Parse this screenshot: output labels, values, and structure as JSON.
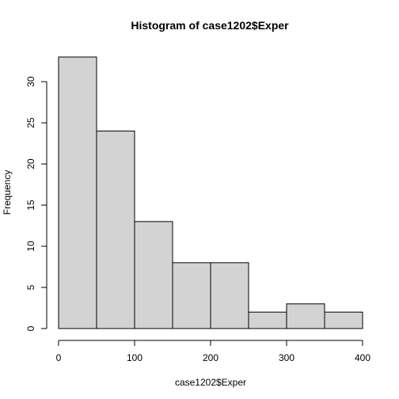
{
  "chart_data": {
    "type": "bar",
    "title": "Histogram of case1202$Exper",
    "xlabel": "case1202$Exper",
    "ylabel": "Frequency",
    "bins": [
      {
        "start": 0,
        "end": 50,
        "count": 33
      },
      {
        "start": 50,
        "end": 100,
        "count": 24
      },
      {
        "start": 100,
        "end": 150,
        "count": 13
      },
      {
        "start": 150,
        "end": 200,
        "count": 8
      },
      {
        "start": 200,
        "end": 250,
        "count": 8
      },
      {
        "start": 250,
        "end": 300,
        "count": 2
      },
      {
        "start": 300,
        "end": 350,
        "count": 3
      },
      {
        "start": 350,
        "end": 400,
        "count": 2
      }
    ],
    "xlim": [
      0,
      400
    ],
    "ylim": [
      0,
      33
    ],
    "x_ticks": [
      0,
      100,
      200,
      300,
      400
    ],
    "y_ticks": [
      0,
      5,
      10,
      15,
      20,
      25,
      30
    ],
    "fill_color": "#d3d3d3",
    "edge_color": "#000000",
    "grid": false,
    "legend": "none"
  }
}
